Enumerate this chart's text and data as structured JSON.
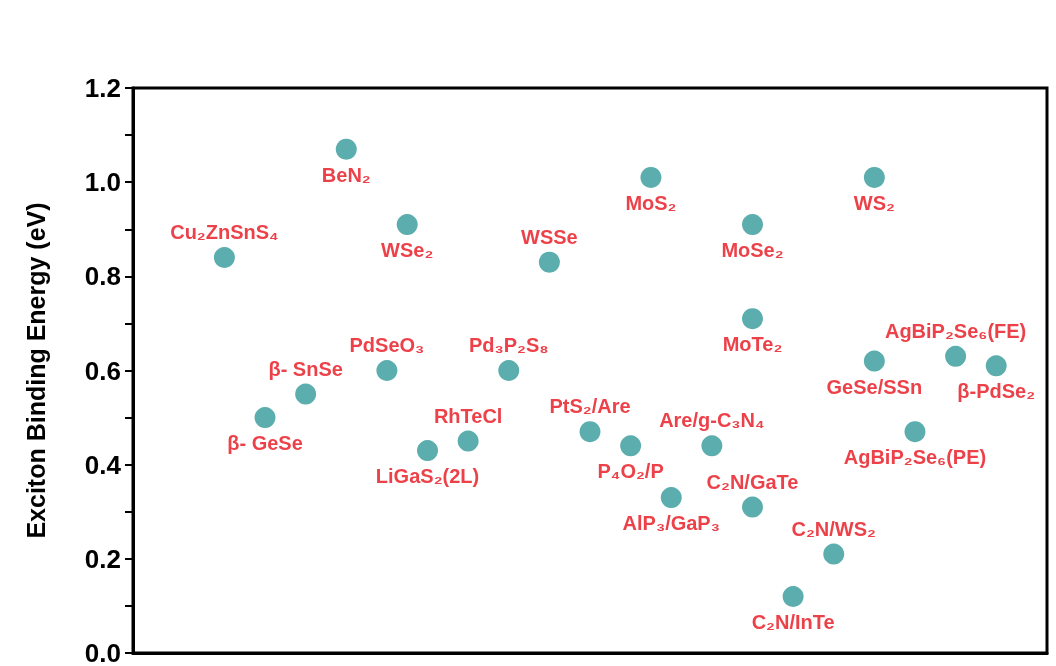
{
  "chart_data": {
    "type": "scatter",
    "ylabel": "Exciton Binding Energy (eV)",
    "marker": "circle",
    "grid": false,
    "ylim": [
      0,
      1.2
    ],
    "yticks": [
      {
        "value": 0,
        "label": "0.0"
      },
      {
        "value": 0.1,
        "label": null
      },
      0.2,
      {
        "value": 0.3,
        "label": null
      },
      0.4,
      {
        "value": 0.5,
        "label": null
      },
      0.6,
      {
        "value": 0.7,
        "label": null
      },
      0.8,
      {
        "value": 0.9,
        "label": null
      },
      {
        "value": 1,
        "label": "1.0"
      },
      {
        "value": 1.1,
        "label": null
      },
      1.2
    ],
    "categories": [
      null,
      null,
      null,
      null,
      null,
      null,
      null,
      null,
      null,
      null,
      null,
      null,
      null,
      null,
      null,
      null,
      null,
      null,
      null,
      null,
      null,
      null,
      null,
      null,
      null,
      null,
      null,
      null,
      null,
      null,
      null,
      null,
      null,
      null,
      null,
      null,
      null,
      null,
      null,
      null,
      null,
      null,
      null,
      null,
      null
    ],
    "series": [
      {
        "name": "Cu₂ZnSnS₄",
        "color": "#339999",
        "values": [
          null,
          null,
          null,
          null,
          0.84,
          null,
          null,
          null,
          null,
          null,
          null,
          null,
          null,
          null,
          null,
          null,
          null,
          null,
          null,
          null,
          null,
          null,
          null,
          null,
          null,
          null,
          null,
          null,
          null,
          null,
          null,
          null,
          null,
          null,
          null,
          null,
          null,
          null,
          null,
          null,
          null,
          null,
          null,
          null,
          null
        ]
      },
      {
        "name": "β- GeSe",
        "color": "#339999",
        "values": [
          null,
          null,
          null,
          null,
          null,
          null,
          0.5,
          null,
          null,
          null,
          null,
          null,
          null,
          null,
          null,
          null,
          null,
          null,
          null,
          null,
          null,
          null,
          null,
          null,
          null,
          null,
          null,
          null,
          null,
          null,
          null,
          null,
          null,
          null,
          null,
          null,
          null,
          null,
          null,
          null,
          null,
          null,
          null,
          null,
          null
        ]
      },
      {
        "name": "β- SnSe",
        "color": "#339999",
        "values": [
          null,
          null,
          null,
          null,
          null,
          null,
          null,
          null,
          0.55,
          null,
          null,
          null,
          null,
          null,
          null,
          null,
          null,
          null,
          null,
          null,
          null,
          null,
          null,
          null,
          null,
          null,
          null,
          null,
          null,
          null,
          null,
          null,
          null,
          null,
          null,
          null,
          null,
          null,
          null,
          null,
          null,
          null,
          null,
          null,
          null
        ]
      },
      {
        "name": "BeN₂",
        "color": "#339999",
        "values": [
          null,
          null,
          null,
          null,
          null,
          null,
          null,
          null,
          null,
          null,
          1.07,
          null,
          null,
          null,
          null,
          null,
          null,
          null,
          null,
          null,
          null,
          null,
          null,
          null,
          null,
          null,
          null,
          null,
          null,
          null,
          null,
          null,
          null,
          null,
          null,
          null,
          null,
          null,
          null,
          null,
          null,
          null,
          null,
          null,
          null
        ]
      },
      {
        "name": "PdSeO₃",
        "color": "#339999",
        "values": [
          null,
          null,
          null,
          null,
          null,
          null,
          null,
          null,
          null,
          null,
          null,
          null,
          0.6,
          null,
          null,
          null,
          null,
          null,
          null,
          null,
          null,
          null,
          null,
          null,
          null,
          null,
          null,
          null,
          null,
          null,
          null,
          null,
          null,
          null,
          null,
          null,
          null,
          null,
          null,
          null,
          null,
          null,
          null,
          null,
          null
        ]
      },
      {
        "name": "WSe₂",
        "color": "#339999",
        "values": [
          null,
          null,
          null,
          null,
          null,
          null,
          null,
          null,
          null,
          null,
          null,
          null,
          null,
          0.91,
          null,
          null,
          null,
          null,
          null,
          null,
          null,
          null,
          null,
          null,
          null,
          null,
          null,
          null,
          null,
          null,
          null,
          null,
          null,
          null,
          null,
          null,
          null,
          null,
          null,
          null,
          null,
          null,
          null,
          null,
          null
        ]
      },
      {
        "name": "LiGaS₂(2L)",
        "color": "#339999",
        "values": [
          null,
          null,
          null,
          null,
          null,
          null,
          null,
          null,
          null,
          null,
          null,
          null,
          null,
          null,
          0.43,
          null,
          null,
          null,
          null,
          null,
          null,
          null,
          null,
          null,
          null,
          null,
          null,
          null,
          null,
          null,
          null,
          null,
          null,
          null,
          null,
          null,
          null,
          null,
          null,
          null,
          null,
          null,
          null,
          null,
          null
        ]
      },
      {
        "name": "RhTeCl",
        "color": "#339999",
        "values": [
          null,
          null,
          null,
          null,
          null,
          null,
          null,
          null,
          null,
          null,
          null,
          null,
          null,
          null,
          null,
          null,
          0.45,
          null,
          null,
          null,
          null,
          null,
          null,
          null,
          null,
          null,
          null,
          null,
          null,
          null,
          null,
          null,
          null,
          null,
          null,
          null,
          null,
          null,
          null,
          null,
          null,
          null,
          null,
          null,
          null
        ]
      },
      {
        "name": "Pd₃P₂S₈",
        "color": "#339999",
        "values": [
          null,
          null,
          null,
          null,
          null,
          null,
          null,
          null,
          null,
          null,
          null,
          null,
          null,
          null,
          null,
          null,
          null,
          null,
          0.6,
          null,
          null,
          null,
          null,
          null,
          null,
          null,
          null,
          null,
          null,
          null,
          null,
          null,
          null,
          null,
          null,
          null,
          null,
          null,
          null,
          null,
          null,
          null,
          null,
          null,
          null
        ]
      },
      {
        "name": "WSSe",
        "color": "#339999",
        "values": [
          null,
          null,
          null,
          null,
          null,
          null,
          null,
          null,
          null,
          null,
          null,
          null,
          null,
          null,
          null,
          null,
          null,
          null,
          null,
          null,
          0.83,
          null,
          null,
          null,
          null,
          null,
          null,
          null,
          null,
          null,
          null,
          null,
          null,
          null,
          null,
          null,
          null,
          null,
          null,
          null,
          null,
          null,
          null,
          null,
          null
        ]
      },
      {
        "name": "PtS₂/Are",
        "color": "#339999",
        "values": [
          null,
          null,
          null,
          null,
          null,
          null,
          null,
          null,
          null,
          null,
          null,
          null,
          null,
          null,
          null,
          null,
          null,
          null,
          null,
          null,
          null,
          null,
          0.47,
          null,
          null,
          null,
          null,
          null,
          null,
          null,
          null,
          null,
          null,
          null,
          null,
          null,
          null,
          null,
          null,
          null,
          null,
          null,
          null,
          null,
          null
        ]
      },
      {
        "name": "P₄O₂/P",
        "color": "#339999",
        "values": [
          null,
          null,
          null,
          null,
          null,
          null,
          null,
          null,
          null,
          null,
          null,
          null,
          null,
          null,
          null,
          null,
          null,
          null,
          null,
          null,
          null,
          null,
          null,
          null,
          0.44,
          null,
          null,
          null,
          null,
          null,
          null,
          null,
          null,
          null,
          null,
          null,
          null,
          null,
          null,
          null,
          null,
          null,
          null,
          null,
          null
        ]
      },
      {
        "name": "MoS₂",
        "color": "#339999",
        "values": [
          null,
          null,
          null,
          null,
          null,
          null,
          null,
          null,
          null,
          null,
          null,
          null,
          null,
          null,
          null,
          null,
          null,
          null,
          null,
          null,
          null,
          null,
          null,
          null,
          null,
          1.01,
          null,
          null,
          null,
          null,
          null,
          null,
          null,
          null,
          null,
          null,
          null,
          null,
          null,
          null,
          null,
          null,
          null,
          null,
          null
        ]
      },
      {
        "name": "AlP₃/GaP₃",
        "color": "#339999",
        "values": [
          null,
          null,
          null,
          null,
          null,
          null,
          null,
          null,
          null,
          null,
          null,
          null,
          null,
          null,
          null,
          null,
          null,
          null,
          null,
          null,
          null,
          null,
          null,
          null,
          null,
          null,
          0.33,
          null,
          null,
          null,
          null,
          null,
          null,
          null,
          null,
          null,
          null,
          null,
          null,
          null,
          null,
          null,
          null,
          null,
          null
        ]
      },
      {
        "name": "Are/g-C₃N₄",
        "color": "#339999",
        "values": [
          null,
          null,
          null,
          null,
          null,
          null,
          null,
          null,
          null,
          null,
          null,
          null,
          null,
          null,
          null,
          null,
          null,
          null,
          null,
          null,
          null,
          null,
          null,
          null,
          null,
          null,
          null,
          null,
          0.44,
          null,
          null,
          null,
          null,
          null,
          null,
          null,
          null,
          null,
          null,
          null,
          null,
          null,
          null,
          null,
          null
        ]
      },
      {
        "name": "MoSe₂",
        "color": "#339999",
        "values": [
          null,
          null,
          null,
          null,
          null,
          null,
          null,
          null,
          null,
          null,
          null,
          null,
          null,
          null,
          null,
          null,
          null,
          null,
          null,
          null,
          null,
          null,
          null,
          null,
          null,
          null,
          null,
          null,
          null,
          null,
          0.91,
          null,
          null,
          null,
          null,
          null,
          null,
          null,
          null,
          null,
          null,
          null,
          null,
          null,
          null
        ]
      },
      {
        "name": "MoTe₂",
        "color": "#339999",
        "values": [
          null,
          null,
          null,
          null,
          null,
          null,
          null,
          null,
          null,
          null,
          null,
          null,
          null,
          null,
          null,
          null,
          null,
          null,
          null,
          null,
          null,
          null,
          null,
          null,
          null,
          null,
          null,
          null,
          null,
          null,
          0.71,
          null,
          null,
          null,
          null,
          null,
          null,
          null,
          null,
          null,
          null,
          null,
          null,
          null,
          null
        ]
      },
      {
        "name": "C₂N/GaTe",
        "color": "#339999",
        "values": [
          null,
          null,
          null,
          null,
          null,
          null,
          null,
          null,
          null,
          null,
          null,
          null,
          null,
          null,
          null,
          null,
          null,
          null,
          null,
          null,
          null,
          null,
          null,
          null,
          null,
          null,
          null,
          null,
          null,
          null,
          0.31,
          null,
          null,
          null,
          null,
          null,
          null,
          null,
          null,
          null,
          null,
          null,
          null,
          null,
          null
        ]
      },
      {
        "name": "C₂N/InTe",
        "color": "#339999",
        "values": [
          null,
          null,
          null,
          null,
          null,
          null,
          null,
          null,
          null,
          null,
          null,
          null,
          null,
          null,
          null,
          null,
          null,
          null,
          null,
          null,
          null,
          null,
          null,
          null,
          null,
          null,
          null,
          null,
          null,
          null,
          null,
          null,
          0.12,
          null,
          null,
          null,
          null,
          null,
          null,
          null,
          null,
          null,
          null,
          null,
          null
        ]
      },
      {
        "name": "C₂N/WS₂",
        "color": "#339999",
        "values": [
          null,
          null,
          null,
          null,
          null,
          null,
          null,
          null,
          null,
          null,
          null,
          null,
          null,
          null,
          null,
          null,
          null,
          null,
          null,
          null,
          null,
          null,
          null,
          null,
          null,
          null,
          null,
          null,
          null,
          null,
          null,
          null,
          null,
          null,
          0.21,
          null,
          null,
          null,
          null,
          null,
          null,
          null,
          null,
          null,
          null
        ]
      },
      {
        "name": "WS₂",
        "color": "#339999",
        "values": [
          null,
          null,
          null,
          null,
          null,
          null,
          null,
          null,
          null,
          null,
          null,
          null,
          null,
          null,
          null,
          null,
          null,
          null,
          null,
          null,
          null,
          null,
          null,
          null,
          null,
          null,
          null,
          null,
          null,
          null,
          null,
          null,
          null,
          null,
          null,
          null,
          1.01,
          null,
          null,
          null,
          null,
          null,
          null,
          null,
          null
        ]
      },
      {
        "name": "GeSe/SSn",
        "color": "#339999",
        "values": [
          null,
          null,
          null,
          null,
          null,
          null,
          null,
          null,
          null,
          null,
          null,
          null,
          null,
          null,
          null,
          null,
          null,
          null,
          null,
          null,
          null,
          null,
          null,
          null,
          null,
          null,
          null,
          null,
          null,
          null,
          null,
          null,
          null,
          null,
          null,
          null,
          0.62,
          null,
          null,
          null,
          null,
          null,
          null,
          null,
          null
        ]
      },
      {
        "name": "AgBiP₂Se₆(PE)",
        "color": "#339999",
        "values": [
          null,
          null,
          null,
          null,
          null,
          null,
          null,
          null,
          null,
          null,
          null,
          null,
          null,
          null,
          null,
          null,
          null,
          null,
          null,
          null,
          null,
          null,
          null,
          null,
          null,
          null,
          null,
          null,
          null,
          null,
          null,
          null,
          null,
          null,
          null,
          null,
          null,
          null,
          0.47,
          null,
          null,
          null,
          null,
          null,
          null
        ]
      },
      {
        "name": "AgBiP₂Se₆(FE)",
        "color": "#339999",
        "values": [
          null,
          null,
          null,
          null,
          null,
          null,
          null,
          null,
          null,
          null,
          null,
          null,
          null,
          null,
          null,
          null,
          null,
          null,
          null,
          null,
          null,
          null,
          null,
          null,
          null,
          null,
          null,
          null,
          null,
          null,
          null,
          null,
          null,
          null,
          null,
          null,
          null,
          null,
          null,
          null,
          0.63,
          null,
          null,
          null,
          null
        ]
      },
      {
        "name": "β-PdSe₂",
        "color": "#339999",
        "values": [
          null,
          null,
          null,
          null,
          null,
          null,
          null,
          null,
          null,
          null,
          null,
          null,
          null,
          null,
          null,
          null,
          null,
          null,
          null,
          null,
          null,
          null,
          null,
          null,
          null,
          null,
          null,
          null,
          null,
          null,
          null,
          null,
          null,
          null,
          null,
          null,
          null,
          null,
          null,
          null,
          null,
          null,
          0.61,
          null,
          null
        ]
      }
    ]
  }
}
